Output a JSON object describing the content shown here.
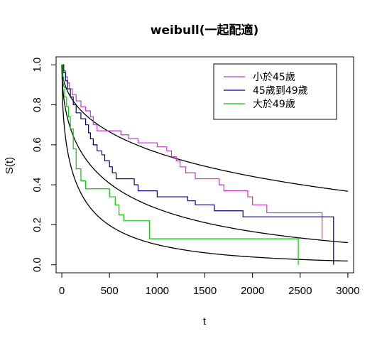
{
  "chart_data": {
    "type": "line",
    "title": "weibull(一起配適)",
    "xlabel": "t",
    "ylabel": "S(t)",
    "xlim": [
      -60,
      3060
    ],
    "ylim": [
      -0.04,
      1.04
    ],
    "x_ticks": [
      0,
      500,
      1000,
      1500,
      2000,
      2500,
      3000
    ],
    "y_ticks": [
      0.0,
      0.2,
      0.4,
      0.6,
      0.8,
      1.0
    ],
    "x_tick_labels": [
      "0",
      "500",
      "1000",
      "1500",
      "2000",
      "2500",
      "3000"
    ],
    "y_tick_labels": [
      "0.0",
      "0.2",
      "0.4",
      "0.6",
      "0.8",
      "1.0"
    ],
    "grid": false,
    "legend_position": "top-right",
    "series": [
      {
        "name": "小於45歲",
        "color": "#cc33cc",
        "step": true,
        "x": [
          0,
          20,
          40,
          60,
          80,
          110,
          150,
          200,
          250,
          300,
          330,
          370,
          620,
          700,
          800,
          1000,
          1100,
          1150,
          1200,
          1240,
          1300,
          1400,
          1650,
          1700,
          1950,
          2000,
          2150,
          2730
        ],
        "y": [
          1.0,
          0.97,
          0.94,
          0.91,
          0.88,
          0.85,
          0.82,
          0.79,
          0.77,
          0.74,
          0.7,
          0.67,
          0.65,
          0.63,
          0.61,
          0.59,
          0.57,
          0.54,
          0.52,
          0.49,
          0.46,
          0.43,
          0.4,
          0.37,
          0.34,
          0.3,
          0.26,
          0.13
        ]
      },
      {
        "name": "45歲到49歲",
        "color": "#000080",
        "step": true,
        "x": [
          0,
          20,
          40,
          60,
          90,
          120,
          150,
          200,
          250,
          280,
          300,
          330,
          370,
          420,
          450,
          500,
          530,
          570,
          760,
          800,
          1000,
          1320,
          1400,
          1600,
          1900,
          2000,
          2850
        ],
        "y": [
          1.0,
          0.96,
          0.92,
          0.88,
          0.84,
          0.8,
          0.76,
          0.73,
          0.7,
          0.66,
          0.63,
          0.6,
          0.57,
          0.55,
          0.52,
          0.49,
          0.46,
          0.43,
          0.4,
          0.37,
          0.34,
          0.32,
          0.3,
          0.27,
          0.24,
          0.24,
          0.0
        ]
      },
      {
        "name": "大於49歲",
        "color": "#00cc00",
        "step": true,
        "x": [
          0,
          10,
          20,
          30,
          50,
          70,
          90,
          120,
          150,
          200,
          250,
          500,
          560,
          600,
          650,
          920,
          1350,
          2480
        ],
        "y": [
          1.0,
          0.94,
          0.89,
          0.84,
          0.79,
          0.74,
          0.68,
          0.58,
          0.48,
          0.42,
          0.38,
          0.34,
          0.3,
          0.25,
          0.22,
          0.13,
          0.13,
          0.0
        ]
      }
    ],
    "fitted_curves": {
      "model": "weibull",
      "color": "#000000",
      "x_max": 3000,
      "curves": [
        {
          "lambda": 3000,
          "k": 0.5
        },
        {
          "lambda": 620,
          "k": 0.5
        },
        {
          "lambda": 190,
          "k": 0.5
        }
      ]
    }
  }
}
